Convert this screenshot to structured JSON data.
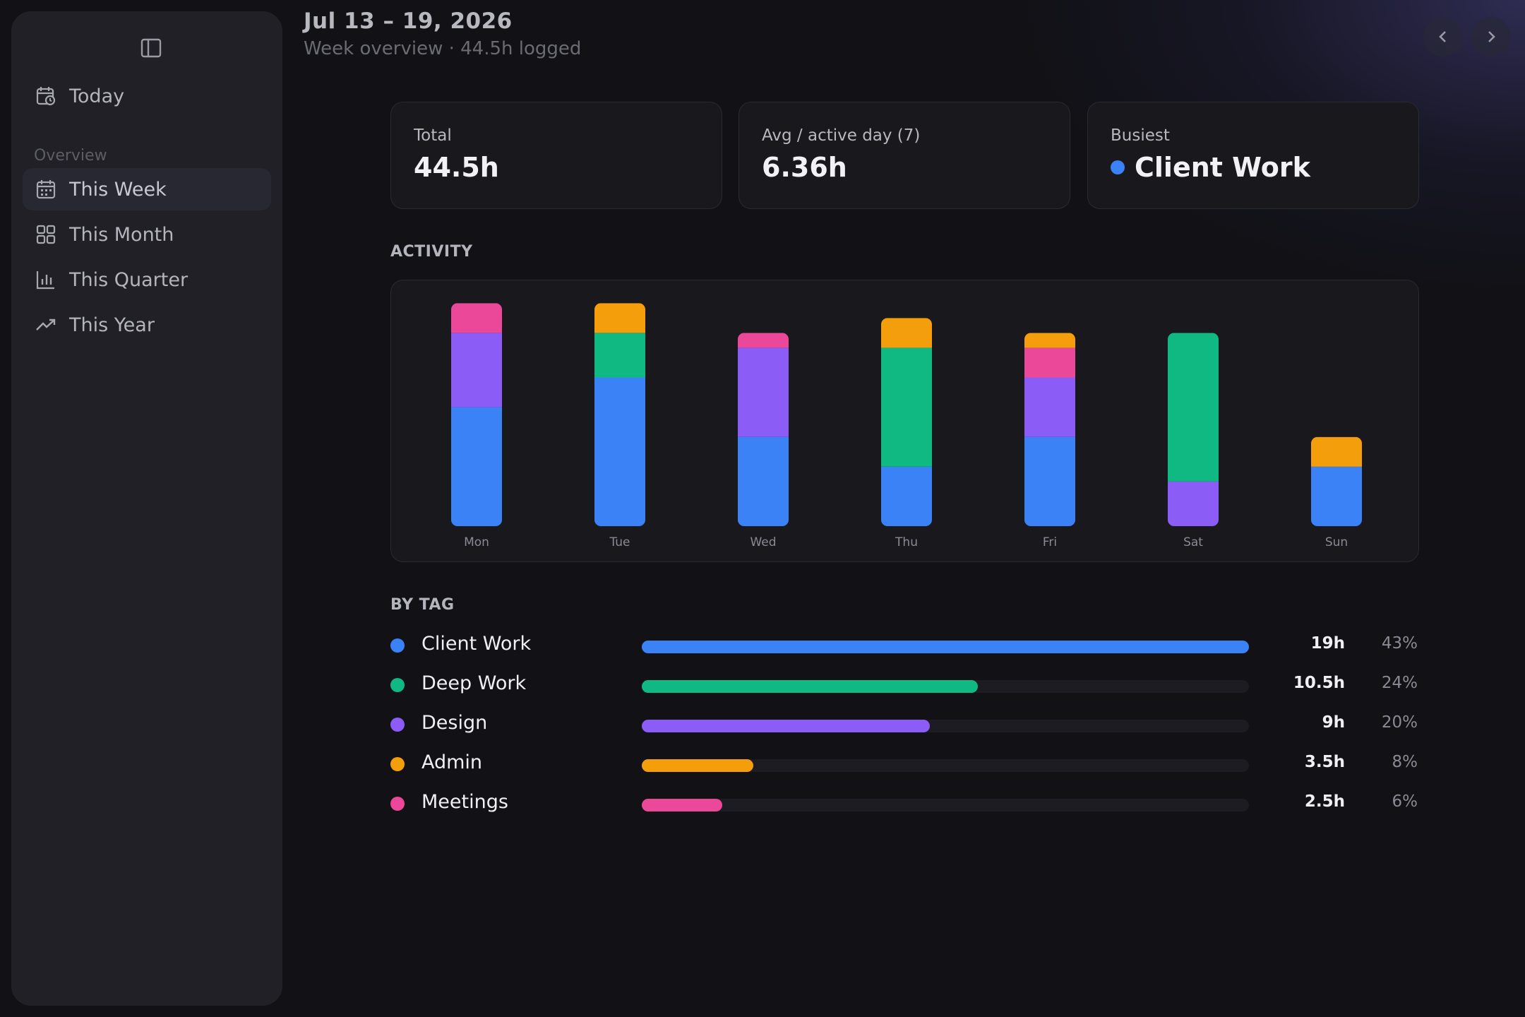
{
  "sidebar": {
    "today_label": "Today",
    "section_label": "Overview",
    "items": [
      {
        "label": "This Week",
        "icon": "calendar-icon",
        "active": true
      },
      {
        "label": "This Month",
        "icon": "grid-icon",
        "active": false
      },
      {
        "label": "This Quarter",
        "icon": "bar-chart-icon",
        "active": false
      },
      {
        "label": "This Year",
        "icon": "trend-up-icon",
        "active": false
      }
    ]
  },
  "header": {
    "title": "Jul 13 – 19, 2026",
    "subtitle": "Week overview · 44.5h logged"
  },
  "stats": {
    "total": {
      "label": "Total",
      "value": "44.5h"
    },
    "avg": {
      "label": "Avg / active day (7)",
      "value": "6.36h"
    },
    "busiest": {
      "label": "Busiest",
      "value": "Client Work",
      "color": "#3b82f6"
    }
  },
  "activity_heading": "ACTIVITY",
  "by_tag_heading": "BY TAG",
  "colors": {
    "Client Work": "#3b82f6",
    "Deep Work": "#10b981",
    "Design": "#8b5cf6",
    "Admin": "#f59e0b",
    "Meetings": "#ec4899"
  },
  "chart_data": {
    "type": "bar",
    "stacked": true,
    "categories": [
      "Mon",
      "Tue",
      "Wed",
      "Thu",
      "Fri",
      "Sat",
      "Sun"
    ],
    "series": [
      {
        "name": "Client Work",
        "values": [
          4,
          5,
          3,
          2,
          3,
          0,
          2
        ]
      },
      {
        "name": "Deep Work",
        "values": [
          0,
          1.5,
          0,
          4,
          0,
          5,
          0
        ]
      },
      {
        "name": "Design",
        "values": [
          2.5,
          0,
          3,
          0,
          2,
          1.5,
          0
        ]
      },
      {
        "name": "Admin",
        "values": [
          0,
          1,
          0,
          1,
          0.5,
          0,
          1
        ]
      },
      {
        "name": "Meetings",
        "values": [
          1,
          0,
          0.5,
          0,
          1,
          0,
          0
        ]
      }
    ],
    "grid": false
  },
  "tags": [
    {
      "name": "Client Work",
      "hours": "19h",
      "pct": "43%",
      "fraction": 1.0,
      "color": "#3b82f6"
    },
    {
      "name": "Deep Work",
      "hours": "10.5h",
      "pct": "24%",
      "fraction": 0.553,
      "color": "#10b981"
    },
    {
      "name": "Design",
      "hours": "9h",
      "pct": "20%",
      "fraction": 0.474,
      "color": "#8b5cf6"
    },
    {
      "name": "Admin",
      "hours": "3.5h",
      "pct": "8%",
      "fraction": 0.184,
      "color": "#f59e0b"
    },
    {
      "name": "Meetings",
      "hours": "2.5h",
      "pct": "6%",
      "fraction": 0.132,
      "color": "#ec4899"
    }
  ]
}
